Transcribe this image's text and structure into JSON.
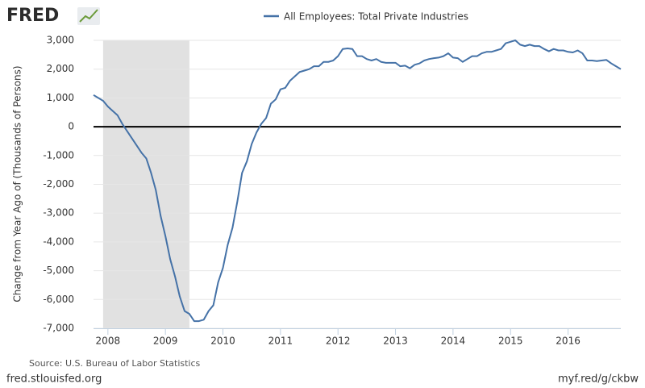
{
  "brand": "FRED",
  "source": "Source: U.S. Bureau of Labor Statistics",
  "site": "fred.stlouisfed.org",
  "short_link": "myf.red/g/ckbw",
  "chart_data": {
    "type": "line",
    "y_label": "Change from Year Ago of (Thousands of Persons)",
    "x": [
      2007.75,
      2007.833,
      2007.917,
      2008,
      2008.083,
      2008.167,
      2008.25,
      2008.333,
      2008.417,
      2008.5,
      2008.583,
      2008.667,
      2008.75,
      2008.833,
      2008.917,
      2009,
      2009.083,
      2009.167,
      2009.25,
      2009.333,
      2009.417,
      2009.5,
      2009.583,
      2009.667,
      2009.75,
      2009.833,
      2009.917,
      2010,
      2010.083,
      2010.167,
      2010.25,
      2010.333,
      2010.417,
      2010.5,
      2010.583,
      2010.667,
      2010.75,
      2010.833,
      2010.917,
      2011,
      2011.083,
      2011.167,
      2011.25,
      2011.333,
      2011.417,
      2011.5,
      2011.583,
      2011.667,
      2011.75,
      2011.833,
      2011.917,
      2012,
      2012.083,
      2012.167,
      2012.25,
      2012.333,
      2012.417,
      2012.5,
      2012.583,
      2012.667,
      2012.75,
      2012.833,
      2012.917,
      2013,
      2013.083,
      2013.167,
      2013.25,
      2013.333,
      2013.417,
      2013.5,
      2013.583,
      2013.667,
      2013.75,
      2013.833,
      2013.917,
      2014,
      2014.083,
      2014.167,
      2014.25,
      2014.333,
      2014.417,
      2014.5,
      2014.583,
      2014.667,
      2014.75,
      2014.833,
      2014.917,
      2015,
      2015.083,
      2015.167,
      2015.25,
      2015.333,
      2015.417,
      2015.5,
      2015.583,
      2015.667,
      2015.75,
      2015.833,
      2015.917,
      2016,
      2016.083,
      2016.167,
      2016.25,
      2016.333,
      2016.417,
      2016.5,
      2016.583,
      2016.667,
      2016.75,
      2016.833,
      2016.917
    ],
    "series": [
      {
        "name": "All Employees: Total Private Industries",
        "color": "#4572a7",
        "values": [
          1100,
          1000,
          900,
          700,
          550,
          400,
          100,
          -150,
          -400,
          -650,
          -900,
          -1100,
          -1600,
          -2200,
          -3100,
          -3800,
          -4600,
          -5200,
          -5900,
          -6400,
          -6500,
          -6750,
          -6750,
          -6700,
          -6400,
          -6200,
          -5400,
          -4900,
          -4100,
          -3500,
          -2600,
          -1600,
          -1200,
          -600,
          -200,
          100,
          300,
          800,
          950,
          1300,
          1350,
          1600,
          1750,
          1900,
          1950,
          2000,
          2100,
          2100,
          2250,
          2250,
          2300,
          2450,
          2700,
          2720,
          2700,
          2450,
          2450,
          2350,
          2300,
          2350,
          2250,
          2220,
          2220,
          2220,
          2100,
          2120,
          2030,
          2150,
          2200,
          2300,
          2350,
          2380,
          2400,
          2450,
          2550,
          2400,
          2380,
          2250,
          2350,
          2450,
          2450,
          2550,
          2600,
          2600,
          2650,
          2700,
          2900,
          2950,
          3000,
          2850,
          2800,
          2850,
          2800,
          2800,
          2700,
          2620,
          2700,
          2650,
          2650,
          2600,
          2580,
          2650,
          2550,
          2300,
          2300,
          2280,
          2300,
          2320,
          2200,
          2100,
          2000
        ]
      }
    ],
    "xlim": [
      2007.75,
      2016.917
    ],
    "xticks": [
      2008,
      2009,
      2010,
      2011,
      2012,
      2013,
      2014,
      2015,
      2016
    ],
    "ylim": [
      -7000,
      3000
    ],
    "yticks": [
      {
        "value": -7000,
        "label": "-7,000"
      },
      {
        "value": -6000,
        "label": "-6,000"
      },
      {
        "value": -5000,
        "label": "-5,000"
      },
      {
        "value": -4000,
        "label": "-4,000"
      },
      {
        "value": -3000,
        "label": "-3,000"
      },
      {
        "value": -2000,
        "label": "-2,000"
      },
      {
        "value": -1000,
        "label": "-1,000"
      },
      0,
      {
        "value": 1000,
        "label": "1,000"
      },
      {
        "value": 2000,
        "label": "2,000"
      },
      {
        "value": 3000,
        "label": "3,000"
      }
    ],
    "grid": true,
    "shading": [
      [
        2007.917,
        2009.417
      ]
    ],
    "shading_color": "#e1e1e1",
    "zero_line": true
  }
}
